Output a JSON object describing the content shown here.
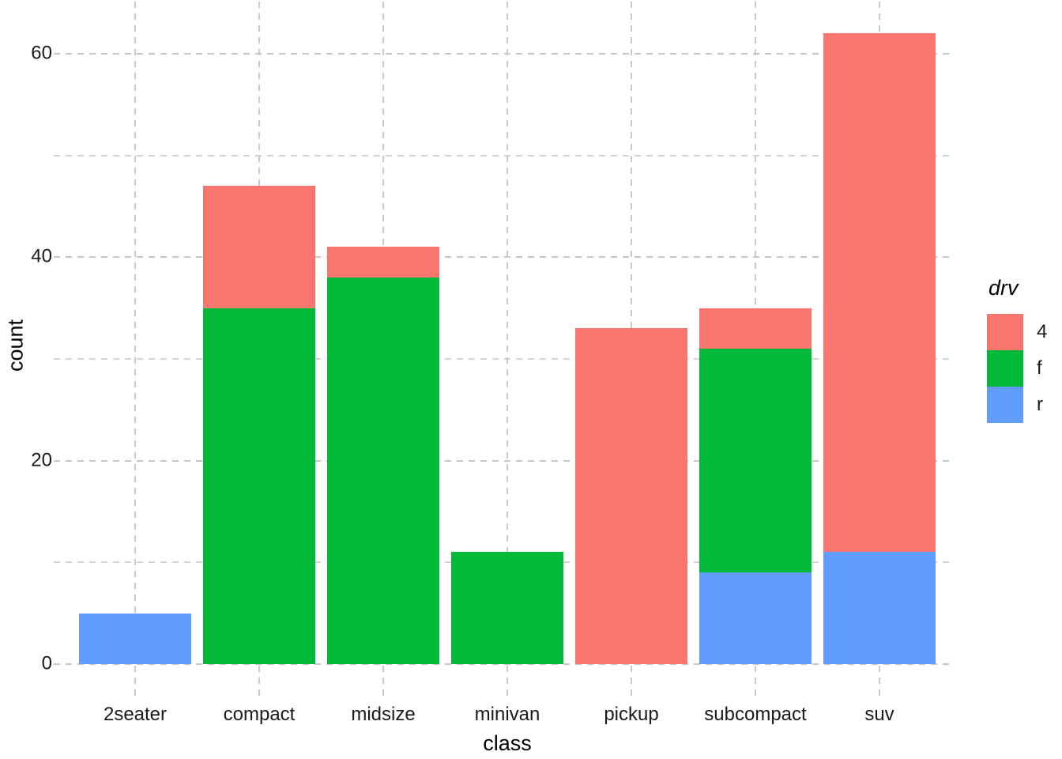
{
  "chart_data": {
    "type": "bar",
    "stacked": true,
    "title": "",
    "xlabel": "class",
    "ylabel": "count",
    "categories": [
      "2seater",
      "compact",
      "midsize",
      "minivan",
      "pickup",
      "subcompact",
      "suv"
    ],
    "series": [
      {
        "name": "4",
        "color": "#F8766D",
        "values": [
          0,
          12,
          3,
          0,
          33,
          4,
          51
        ]
      },
      {
        "name": "f",
        "color": "#00BA38",
        "values": [
          0,
          35,
          38,
          11,
          0,
          22,
          0
        ]
      },
      {
        "name": "r",
        "color": "#619CFF",
        "values": [
          5,
          0,
          0,
          0,
          0,
          9,
          11
        ]
      }
    ],
    "stack_order_bottom_to_top": [
      "r",
      "f",
      "4"
    ],
    "totals": [
      5,
      47,
      41,
      11,
      33,
      35,
      62
    ],
    "y_ticks": [
      0,
      20,
      40,
      60
    ],
    "y_tick_labels": [
      "0",
      "20",
      "40",
      "60"
    ],
    "y_minor_ticks": [
      10,
      30,
      50
    ],
    "ylim": [
      0,
      65
    ],
    "legend_title": "drv",
    "legend_labels": [
      "4",
      "f",
      "r"
    ],
    "legend_position": "right",
    "grid": "dashed",
    "background_color": "#FFFFFF",
    "gridline_color": "#C9C9C9"
  }
}
